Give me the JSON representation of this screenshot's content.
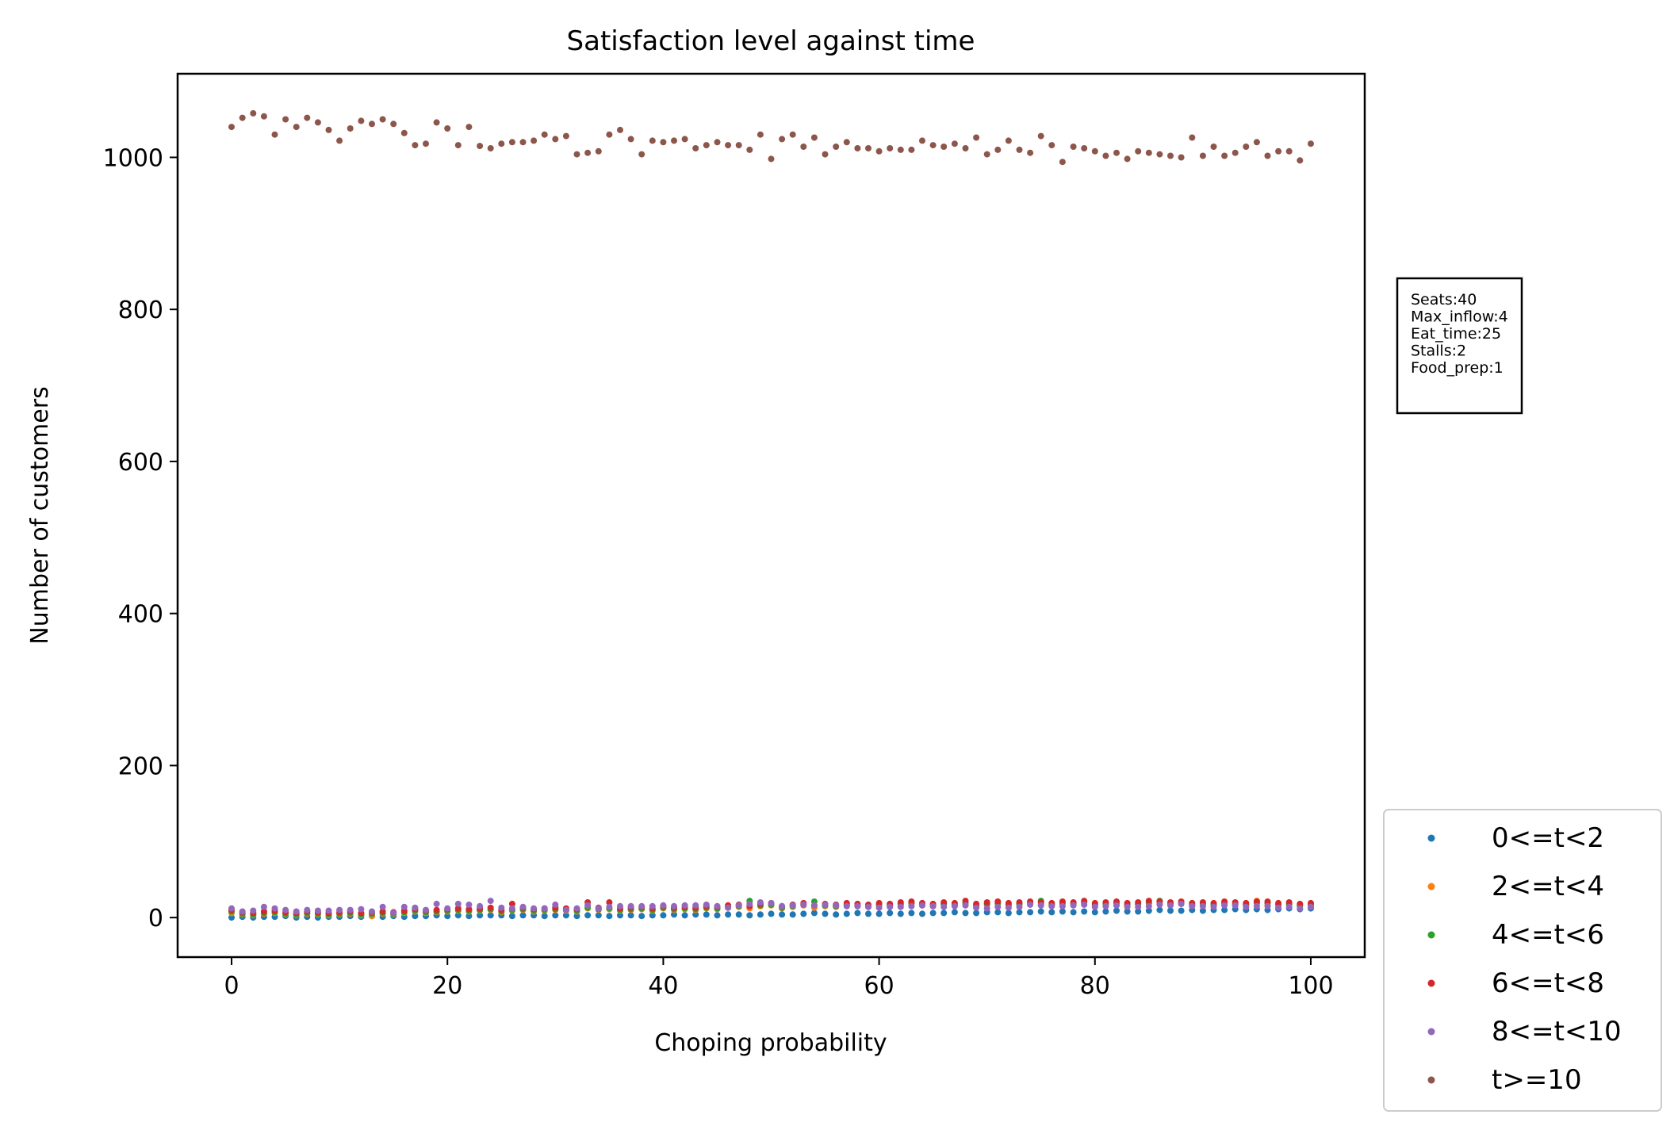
{
  "chart_data": {
    "type": "scatter",
    "title": "Satisfaction level against time",
    "xlabel": "Choping probability",
    "ylabel": "Number of customers",
    "xlim": [
      -5,
      105
    ],
    "ylim": [
      -52,
      1110
    ],
    "xticks": [
      0,
      20,
      40,
      60,
      80,
      100
    ],
    "yticks": [
      0,
      200,
      400,
      600,
      800,
      1000
    ],
    "grid": false,
    "legend_placement": "lower-right outside",
    "x": [
      0,
      1,
      2,
      3,
      4,
      5,
      6,
      7,
      8,
      9,
      10,
      11,
      12,
      13,
      14,
      15,
      16,
      17,
      18,
      19,
      20,
      21,
      22,
      23,
      24,
      25,
      26,
      27,
      28,
      29,
      30,
      31,
      32,
      33,
      34,
      35,
      36,
      37,
      38,
      39,
      40,
      41,
      42,
      43,
      44,
      45,
      46,
      47,
      48,
      49,
      50,
      51,
      52,
      53,
      54,
      55,
      56,
      57,
      58,
      59,
      60,
      61,
      62,
      63,
      64,
      65,
      66,
      67,
      68,
      69,
      70,
      71,
      72,
      73,
      74,
      75,
      76,
      77,
      78,
      79,
      80,
      81,
      82,
      83,
      84,
      85,
      86,
      87,
      88,
      89,
      90,
      91,
      92,
      93,
      94,
      95,
      96,
      97,
      98,
      99,
      100
    ],
    "series": [
      {
        "name": "0<=t<2",
        "color": "#1f77b4",
        "values": [
          0,
          1,
          0,
          1,
          1,
          2,
          0,
          1,
          0,
          1,
          1,
          2,
          1,
          2,
          1,
          2,
          1,
          2,
          2,
          3,
          2,
          3,
          2,
          3,
          3,
          3,
          2,
          3,
          3,
          2,
          3,
          3,
          2,
          3,
          3,
          2,
          3,
          3,
          2,
          3,
          3,
          4,
          3,
          4,
          4,
          3,
          4,
          4,
          3,
          4,
          5,
          4,
          4,
          5,
          6,
          5,
          4,
          5,
          6,
          5,
          5,
          6,
          5,
          6,
          5,
          6,
          6,
          7,
          6,
          6,
          7,
          7,
          6,
          7,
          7,
          8,
          7,
          8,
          7,
          8,
          7,
          8,
          9,
          8,
          8,
          9,
          10,
          9,
          9,
          10,
          9,
          10,
          10,
          11,
          10,
          11,
          10,
          11,
          12,
          11,
          12
        ]
      },
      {
        "name": "2<=t<4",
        "color": "#ff7f0e",
        "values": [
          6,
          4,
          3,
          5,
          6,
          4,
          3,
          5,
          4,
          3,
          4,
          5,
          3,
          2,
          5,
          4,
          6,
          8,
          6,
          7,
          8,
          9,
          8,
          9,
          10,
          7,
          9,
          10,
          8,
          9,
          10,
          9,
          8,
          12,
          10,
          11,
          9,
          10,
          11,
          9,
          12,
          10,
          11,
          10,
          12,
          11,
          13,
          14,
          12,
          15,
          16,
          12,
          14,
          16,
          13,
          15,
          14,
          16,
          15,
          14,
          16,
          15,
          17,
          18,
          16,
          15,
          17,
          16,
          18,
          15,
          17,
          18,
          16,
          17,
          18,
          17,
          16,
          18,
          17,
          19,
          16,
          17,
          18,
          16,
          17,
          19,
          18,
          17,
          18,
          16,
          17,
          16,
          18,
          17,
          16,
          22,
          18,
          16,
          17,
          15,
          16
        ]
      },
      {
        "name": "4<=t<6",
        "color": "#2ca02c",
        "values": [
          8,
          5,
          4,
          6,
          7,
          5,
          4,
          6,
          5,
          4,
          5,
          6,
          4,
          5,
          6,
          5,
          7,
          9,
          7,
          8,
          9,
          10,
          9,
          10,
          11,
          8,
          10,
          11,
          9,
          10,
          11,
          10,
          9,
          13,
          11,
          12,
          10,
          11,
          12,
          10,
          13,
          11,
          12,
          11,
          13,
          12,
          14,
          15,
          22,
          16,
          17,
          13,
          15,
          17,
          21,
          16,
          15,
          17,
          16,
          15,
          17,
          16,
          18,
          19,
          17,
          16,
          18,
          17,
          19,
          16,
          18,
          19,
          17,
          18,
          19,
          22,
          17,
          19,
          18,
          20,
          17,
          18,
          19,
          17,
          18,
          20,
          22,
          18,
          19,
          17,
          18,
          17,
          19,
          18,
          17,
          19,
          19,
          17,
          18,
          16,
          17
        ]
      },
      {
        "name": "6<=t<8",
        "color": "#d62728",
        "values": [
          10,
          7,
          6,
          8,
          9,
          7,
          6,
          8,
          7,
          6,
          7,
          8,
          6,
          7,
          8,
          7,
          9,
          11,
          9,
          10,
          11,
          12,
          11,
          12,
          13,
          10,
          18,
          13,
          11,
          12,
          13,
          12,
          11,
          20,
          13,
          20,
          12,
          13,
          14,
          12,
          15,
          13,
          14,
          13,
          15,
          14,
          16,
          17,
          15,
          18,
          19,
          15,
          17,
          19,
          16,
          18,
          17,
          19,
          18,
          17,
          19,
          18,
          20,
          21,
          19,
          18,
          20,
          19,
          22,
          18,
          20,
          21,
          19,
          20,
          21,
          20,
          19,
          21,
          20,
          22,
          19,
          20,
          21,
          19,
          20,
          22,
          21,
          20,
          21,
          19,
          20,
          19,
          21,
          20,
          19,
          21,
          21,
          19,
          20,
          18,
          19
        ]
      },
      {
        "name": "8<=t<10",
        "color": "#9467bd",
        "values": [
          12,
          8,
          9,
          14,
          12,
          10,
          8,
          10,
          9,
          9,
          10,
          10,
          11,
          8,
          14,
          6,
          14,
          13,
          10,
          18,
          12,
          18,
          17,
          15,
          22,
          13,
          12,
          14,
          12,
          12,
          17,
          10,
          12,
          16,
          12,
          14,
          15,
          15,
          15,
          15,
          16,
          15,
          16,
          16,
          17,
          15,
          13,
          16,
          18,
          20,
          19,
          15,
          16,
          17,
          16,
          17,
          16,
          15,
          15,
          14,
          13,
          14,
          14,
          15,
          16,
          15,
          14,
          15,
          16,
          13,
          12,
          14,
          13,
          14,
          17,
          16,
          15,
          15,
          16,
          17,
          14,
          15,
          16,
          14,
          14,
          15,
          17,
          16,
          18,
          15,
          15,
          14,
          16,
          16,
          14,
          15,
          15,
          13,
          14,
          12,
          14
        ]
      },
      {
        "name": "t>=10",
        "color": "#8c564b",
        "values": [
          1040,
          1052,
          1058,
          1054,
          1030,
          1050,
          1040,
          1052,
          1046,
          1036,
          1022,
          1038,
          1048,
          1044,
          1050,
          1044,
          1032,
          1016,
          1018,
          1046,
          1038,
          1016,
          1040,
          1015,
          1012,
          1018,
          1020,
          1020,
          1022,
          1030,
          1024,
          1028,
          1004,
          1006,
          1008,
          1030,
          1036,
          1024,
          1004,
          1022,
          1020,
          1022,
          1024,
          1012,
          1016,
          1020,
          1016,
          1016,
          1010,
          1030,
          998,
          1024,
          1030,
          1014,
          1026,
          1004,
          1014,
          1020,
          1012,
          1012,
          1008,
          1012,
          1010,
          1010,
          1022,
          1016,
          1014,
          1018,
          1012,
          1026,
          1004,
          1010,
          1022,
          1010,
          1006,
          1028,
          1016,
          994,
          1014,
          1012,
          1008,
          1002,
          1006,
          998,
          1008,
          1006,
          1004,
          1002,
          1000,
          1026,
          1002,
          1014,
          1002,
          1006,
          1014,
          1020,
          1002,
          1008,
          1008,
          996,
          1018
        ]
      }
    ],
    "annotation": {
      "lines": [
        "Seats:40",
        "Max_inflow:4",
        "Eat_time:25",
        "Stalls:2",
        "Food_prep:1"
      ]
    }
  }
}
